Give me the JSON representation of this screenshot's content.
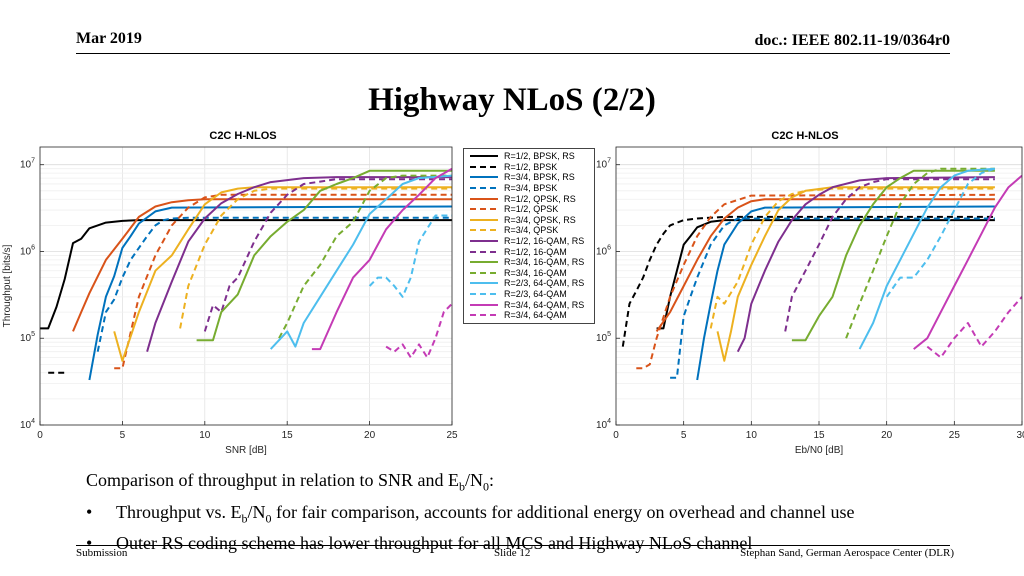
{
  "header": {
    "date": "Mar 2019",
    "doc": "doc.: IEEE 802.11-19/0364r0"
  },
  "title": "Highway NLoS (2/2)",
  "body": {
    "intro_pre": "Comparison of throughput in relation to SNR and E",
    "intro_sub1": "b",
    "intro_mid": "/N",
    "intro_sub2": "0",
    "intro_post": ":",
    "bullet_symbol": "•",
    "bullet1_pre": "Throughput vs. E",
    "bullet1_sub1": "b",
    "bullet1_mid": "/N",
    "bullet1_sub2": "0",
    "bullet1_post": " for fair comparison, accounts for additional energy on overhead and channel use",
    "bullet2": "Outer RS coding scheme has lower throughput for all MCS and Highway NLoS channel"
  },
  "footer": {
    "left": "Submission",
    "center": "Slide 12",
    "right": "Stephan Sand, German Aerospace Center (DLR)"
  },
  "legend": [
    {
      "label": "R=1/2, BPSK, RS",
      "color": "#000000",
      "style": "solid"
    },
    {
      "label": "R=1/2, BPSK",
      "color": "#000000",
      "style": "dashed"
    },
    {
      "label": "R=3/4, BPSK, RS",
      "color": "#0072BD",
      "style": "solid"
    },
    {
      "label": "R=3/4, BPSK",
      "color": "#0072BD",
      "style": "dashed"
    },
    {
      "label": "R=1/2, QPSK, RS",
      "color": "#D95319",
      "style": "solid"
    },
    {
      "label": "R=1/2, QPSK",
      "color": "#D95319",
      "style": "dashed"
    },
    {
      "label": "R=3/4, QPSK, RS",
      "color": "#EDB120",
      "style": "solid"
    },
    {
      "label": "R=3/4, QPSK",
      "color": "#EDB120",
      "style": "dashed"
    },
    {
      "label": "R=1/2, 16-QAM, RS",
      "color": "#7E2F8E",
      "style": "solid"
    },
    {
      "label": "R=1/2, 16-QAM",
      "color": "#7E2F8E",
      "style": "dashed"
    },
    {
      "label": "R=3/4, 16-QAM, RS",
      "color": "#77AC30",
      "style": "solid"
    },
    {
      "label": "R=3/4, 16-QAM",
      "color": "#77AC30",
      "style": "dashed"
    },
    {
      "label": "R=2/3, 64-QAM, RS",
      "color": "#4DBEEE",
      "style": "solid"
    },
    {
      "label": "R=2/3, 64-QAM",
      "color": "#4DBEEE",
      "style": "dashed"
    },
    {
      "label": "R=3/4, 64-QAM, RS",
      "color": "#C43BB5",
      "style": "solid"
    },
    {
      "label": "R=3/4, 64-QAM",
      "color": "#C43BB5",
      "style": "dashed"
    }
  ],
  "chart_data": [
    {
      "type": "line",
      "title": "C2C H-NLOS",
      "xlabel": "SNR [dB]",
      "ylabel": "Throughput [bits/s]",
      "xlim": [
        0,
        25
      ],
      "ylim": [
        10000,
        16000000
      ],
      "yscale": "log",
      "xticks": [
        "0",
        "5",
        "10",
        "15",
        "20",
        "25"
      ],
      "yticks": [
        {
          "value": 10000,
          "base": "10",
          "exp": "4"
        },
        {
          "value": 100000,
          "base": "10",
          "exp": "5"
        },
        {
          "value": 1000000,
          "base": "10",
          "exp": "6"
        },
        {
          "value": 10000000,
          "base": "10",
          "exp": "7"
        }
      ],
      "grid": true,
      "series": [
        {
          "name": "R=1/2, BPSK, RS",
          "x": [
            0,
            0.5,
            1,
            1.5,
            2,
            2.5,
            3,
            4,
            5,
            6,
            25
          ],
          "y": [
            130000,
            130000,
            230000,
            480000,
            1250000,
            1400000,
            1850000,
            2150000,
            2250000,
            2300000,
            2300000
          ]
        },
        {
          "name": "R=1/2, BPSK",
          "x": [
            0.5,
            1.5
          ],
          "y": [
            40000,
            40000
          ]
        },
        {
          "name": "R=3/4, BPSK, RS",
          "x": [
            3,
            3.5,
            4,
            4.5,
            5,
            5.5,
            6,
            7,
            8,
            25
          ],
          "y": [
            33000,
            110000,
            300000,
            520000,
            1100000,
            1500000,
            2100000,
            2900000,
            3200000,
            3300000
          ]
        },
        {
          "name": "R=3/4, BPSK",
          "x": [
            3.5,
            4,
            4.5,
            5,
            5.5,
            6,
            6.5,
            7,
            7.5,
            8,
            9,
            25
          ],
          "y": [
            70000,
            200000,
            280000,
            500000,
            800000,
            1100000,
            1500000,
            2000000,
            2300000,
            2400000,
            2450000,
            2450000
          ]
        },
        {
          "name": "R=1/2, QPSK, RS",
          "x": [
            2,
            2.5,
            3,
            4,
            5,
            6,
            7,
            8,
            9,
            10,
            25
          ],
          "y": [
            120000,
            200000,
            330000,
            800000,
            1400000,
            2500000,
            3300000,
            3700000,
            3900000,
            4000000,
            4000000
          ]
        },
        {
          "name": "R=1/2, QPSK",
          "x": [
            4.5,
            5,
            6,
            7,
            8,
            9,
            10,
            11,
            25
          ],
          "y": [
            45000,
            45000,
            300000,
            900000,
            2000000,
            3200000,
            4200000,
            4500000,
            4500000
          ]
        },
        {
          "name": "R=3/4, QPSK, RS",
          "x": [
            4.5,
            5,
            6,
            7,
            8,
            9,
            10,
            11,
            12,
            13,
            25
          ],
          "y": [
            120000,
            55000,
            200000,
            600000,
            900000,
            1800000,
            3500000,
            4800000,
            5300000,
            5500000,
            5500000
          ]
        },
        {
          "name": "R=3/4, QPSK",
          "x": [
            8.5,
            9,
            10,
            11,
            12,
            13,
            14,
            25
          ],
          "y": [
            130000,
            400000,
            1200000,
            2600000,
            4000000,
            5000000,
            5300000,
            5300000
          ]
        },
        {
          "name": "R=1/2, 16-QAM, RS",
          "x": [
            6.5,
            7,
            8,
            9,
            10,
            11,
            12,
            13,
            14,
            16,
            18,
            25
          ],
          "y": [
            70000,
            150000,
            450000,
            1300000,
            2400000,
            3600000,
            4600000,
            5500000,
            6300000,
            7000000,
            7200000,
            7200000
          ]
        },
        {
          "name": "R=1/2, 16-QAM",
          "x": [
            10,
            10.5,
            11,
            11.5,
            12,
            13,
            14,
            15,
            16,
            18,
            25
          ],
          "y": [
            120000,
            240000,
            200000,
            400000,
            500000,
            1300000,
            2800000,
            4500000,
            6000000,
            6800000,
            6800000
          ]
        },
        {
          "name": "R=3/4, 16-QAM, RS",
          "x": [
            9.5,
            10.5,
            11,
            12,
            13,
            14,
            15,
            16,
            17,
            18,
            19,
            20,
            25
          ],
          "y": [
            95000,
            95000,
            200000,
            320000,
            900000,
            1500000,
            2200000,
            3000000,
            5000000,
            6000000,
            7000000,
            8500000,
            8500000
          ]
        },
        {
          "name": "R=3/4, 16-QAM",
          "x": [
            14.5,
            15,
            16,
            17,
            18,
            19,
            20,
            21,
            22,
            25
          ],
          "y": [
            100000,
            150000,
            400000,
            700000,
            1500000,
            2200000,
            5000000,
            7000000,
            7500000,
            7500000
          ]
        },
        {
          "name": "R=2/3, 64-QAM, RS",
          "x": [
            14,
            15,
            15.5,
            16,
            17,
            18,
            19,
            20,
            21,
            22,
            23,
            25
          ],
          "y": [
            75000,
            120000,
            80000,
            150000,
            300000,
            600000,
            1200000,
            2700000,
            4000000,
            6000000,
            7000000,
            7500000
          ]
        },
        {
          "name": "R=2/3, 64-QAM",
          "x": [
            20,
            20.5,
            21,
            21.5,
            22,
            22.5,
            23,
            24,
            25
          ],
          "y": [
            400000,
            500000,
            500000,
            400000,
            300000,
            500000,
            1300000,
            2600000,
            2600000
          ]
        },
        {
          "name": "R=3/4, 64-QAM, RS",
          "x": [
            16.5,
            17,
            18,
            19,
            20,
            21,
            22,
            23,
            24,
            25
          ],
          "y": [
            75000,
            75000,
            200000,
            500000,
            800000,
            1800000,
            3000000,
            4500000,
            7000000,
            9000000
          ]
        },
        {
          "name": "R=3/4, 64-QAM",
          "x": [
            21,
            21.5,
            22,
            22.5,
            23,
            23.5,
            24,
            24.5,
            25
          ],
          "y": [
            80000,
            70000,
            85000,
            60000,
            85000,
            60000,
            100000,
            200000,
            250000
          ]
        }
      ]
    },
    {
      "type": "line",
      "title": "C2C H-NLOS",
      "xlabel": "Eb/N0 [dB]",
      "ylabel": "",
      "xlim": [
        0,
        30
      ],
      "ylim": [
        10000,
        16000000
      ],
      "yscale": "log",
      "xticks": [
        "0",
        "5",
        "10",
        "15",
        "20",
        "25",
        "30"
      ],
      "yticks": [
        {
          "value": 10000,
          "base": "10",
          "exp": "4"
        },
        {
          "value": 100000,
          "base": "10",
          "exp": "5"
        },
        {
          "value": 1000000,
          "base": "10",
          "exp": "6"
        },
        {
          "value": 10000000,
          "base": "10",
          "exp": "7"
        }
      ],
      "grid": true,
      "series": [
        {
          "name": "R=1/2, BPSK, RS",
          "x": [
            3,
            3.5,
            4,
            4.5,
            5,
            5.5,
            6,
            7,
            8,
            28
          ],
          "y": [
            130000,
            130000,
            300000,
            600000,
            1200000,
            1500000,
            1900000,
            2200000,
            2300000,
            2300000
          ]
        },
        {
          "name": "R=1/2, BPSK",
          "x": [
            0.5,
            1,
            1.5,
            2,
            2.5,
            3,
            3.5,
            4,
            5,
            6,
            8,
            28
          ],
          "y": [
            80000,
            250000,
            350000,
            500000,
            800000,
            1200000,
            1600000,
            2000000,
            2300000,
            2400000,
            2500000,
            2500000
          ]
        },
        {
          "name": "R=3/4, BPSK, RS",
          "x": [
            6,
            6.5,
            7,
            7.5,
            8,
            9,
            10,
            11,
            28
          ],
          "y": [
            33000,
            100000,
            250000,
            600000,
            1200000,
            2100000,
            2900000,
            3200000,
            3300000
          ]
        },
        {
          "name": "R=3/4, BPSK",
          "x": [
            4,
            4.5,
            5,
            5.5,
            6,
            7,
            8,
            9,
            28
          ],
          "y": [
            35000,
            35000,
            180000,
            300000,
            500000,
            1200000,
            2000000,
            2400000,
            2400000
          ]
        },
        {
          "name": "R=1/2, QPSK, RS",
          "x": [
            3,
            4,
            5,
            6,
            7,
            8,
            9,
            10,
            11,
            28
          ],
          "y": [
            120000,
            200000,
            400000,
            800000,
            1500000,
            2400000,
            3200000,
            3800000,
            4000000,
            4000000
          ]
        },
        {
          "name": "R=1/2, QPSK",
          "x": [
            1.5,
            2,
            2.5,
            3,
            4,
            5,
            6,
            7,
            8,
            10,
            28
          ],
          "y": [
            45000,
            45000,
            50000,
            100000,
            300000,
            700000,
            1500000,
            2500000,
            3500000,
            4400000,
            4500000
          ]
        },
        {
          "name": "R=3/4, QPSK, RS",
          "x": [
            7.5,
            8,
            8.5,
            9,
            10,
            11,
            12,
            13,
            14,
            16,
            28
          ],
          "y": [
            120000,
            55000,
            120000,
            300000,
            700000,
            1500000,
            3000000,
            4200000,
            5000000,
            5500000,
            5500000
          ]
        },
        {
          "name": "R=3/4, QPSK",
          "x": [
            7,
            7.5,
            8,
            9,
            10,
            11,
            12,
            13,
            14,
            16,
            28
          ],
          "y": [
            130000,
            300000,
            250000,
            450000,
            1200000,
            2500000,
            3800000,
            4600000,
            5000000,
            5300000,
            5300000
          ]
        },
        {
          "name": "R=1/2, 16-QAM, RS",
          "x": [
            9,
            9.5,
            10,
            11,
            12,
            13,
            14,
            15,
            16,
            18,
            20,
            28
          ],
          "y": [
            70000,
            100000,
            250000,
            600000,
            1300000,
            2300000,
            3500000,
            4500000,
            5500000,
            6600000,
            7000000,
            7200000
          ]
        },
        {
          "name": "R=1/2, 16-QAM",
          "x": [
            12.5,
            13,
            14,
            15,
            16,
            17,
            18,
            19,
            20,
            22,
            28
          ],
          "y": [
            120000,
            300000,
            600000,
            1200000,
            2500000,
            4000000,
            5500000,
            6300000,
            6800000,
            6800000,
            6800000
          ]
        },
        {
          "name": "R=3/4, 16-QAM, RS",
          "x": [
            13,
            14,
            15,
            16,
            17,
            18,
            19,
            20,
            21,
            22,
            28
          ],
          "y": [
            95000,
            95000,
            180000,
            300000,
            900000,
            2000000,
            3500000,
            5500000,
            7000000,
            8500000,
            8500000
          ]
        },
        {
          "name": "R=3/4, 16-QAM",
          "x": [
            17,
            18,
            19,
            20,
            21,
            22,
            23,
            24,
            28
          ],
          "y": [
            100000,
            250000,
            600000,
            1500000,
            3500000,
            6000000,
            8000000,
            9000000,
            9000000
          ]
        },
        {
          "name": "R=2/3, 64-QAM, RS",
          "x": [
            18,
            19,
            20,
            21,
            22,
            23,
            24,
            25,
            26,
            28
          ],
          "y": [
            75000,
            150000,
            400000,
            800000,
            1600000,
            3200000,
            5500000,
            7500000,
            8500000,
            9000000
          ]
        },
        {
          "name": "R=2/3, 64-QAM",
          "x": [
            20,
            21,
            22,
            23,
            24,
            25,
            26,
            27,
            28
          ],
          "y": [
            300000,
            500000,
            500000,
            800000,
            1500000,
            3000000,
            6000000,
            8000000,
            9000000
          ]
        },
        {
          "name": "R=3/4, 64-QAM, RS",
          "x": [
            22,
            23,
            24,
            25,
            26,
            27,
            28,
            29,
            30
          ],
          "y": [
            75000,
            100000,
            200000,
            400000,
            800000,
            1600000,
            3200000,
            5500000,
            7500000
          ]
        },
        {
          "name": "R=3/4, 64-QAM",
          "x": [
            23,
            24,
            25,
            26,
            27,
            28,
            29,
            30
          ],
          "y": [
            80000,
            60000,
            100000,
            150000,
            80000,
            120000,
            200000,
            300000
          ]
        }
      ]
    }
  ]
}
